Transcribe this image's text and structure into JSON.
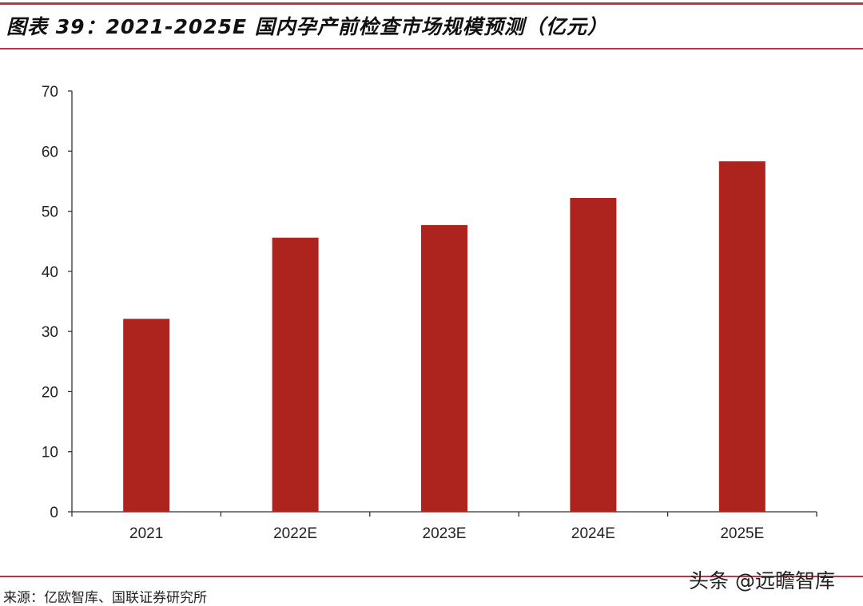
{
  "title": "图表 39：2021-2025E 国内孕产前检查市场规模预测（亿元）",
  "source": "来源：亿欧智库、国联证券研究所",
  "watermark": "头条 @远瞻智库",
  "colors": {
    "bar": "#ad231d",
    "rule": "#b5384a"
  },
  "chart_data": {
    "type": "bar",
    "title": "2021-2025E 国内孕产前检查市场规模预测（亿元）",
    "categories": [
      "2021",
      "2022E",
      "2023E",
      "2024E",
      "2025E"
    ],
    "values": [
      32.1,
      45.6,
      47.7,
      52.2,
      58.3
    ],
    "xlabel": "",
    "ylabel": "",
    "ylim": [
      0,
      70
    ],
    "yticks": [
      0,
      10,
      20,
      30,
      40,
      50,
      60,
      70
    ],
    "grid": false,
    "legend": "none"
  }
}
